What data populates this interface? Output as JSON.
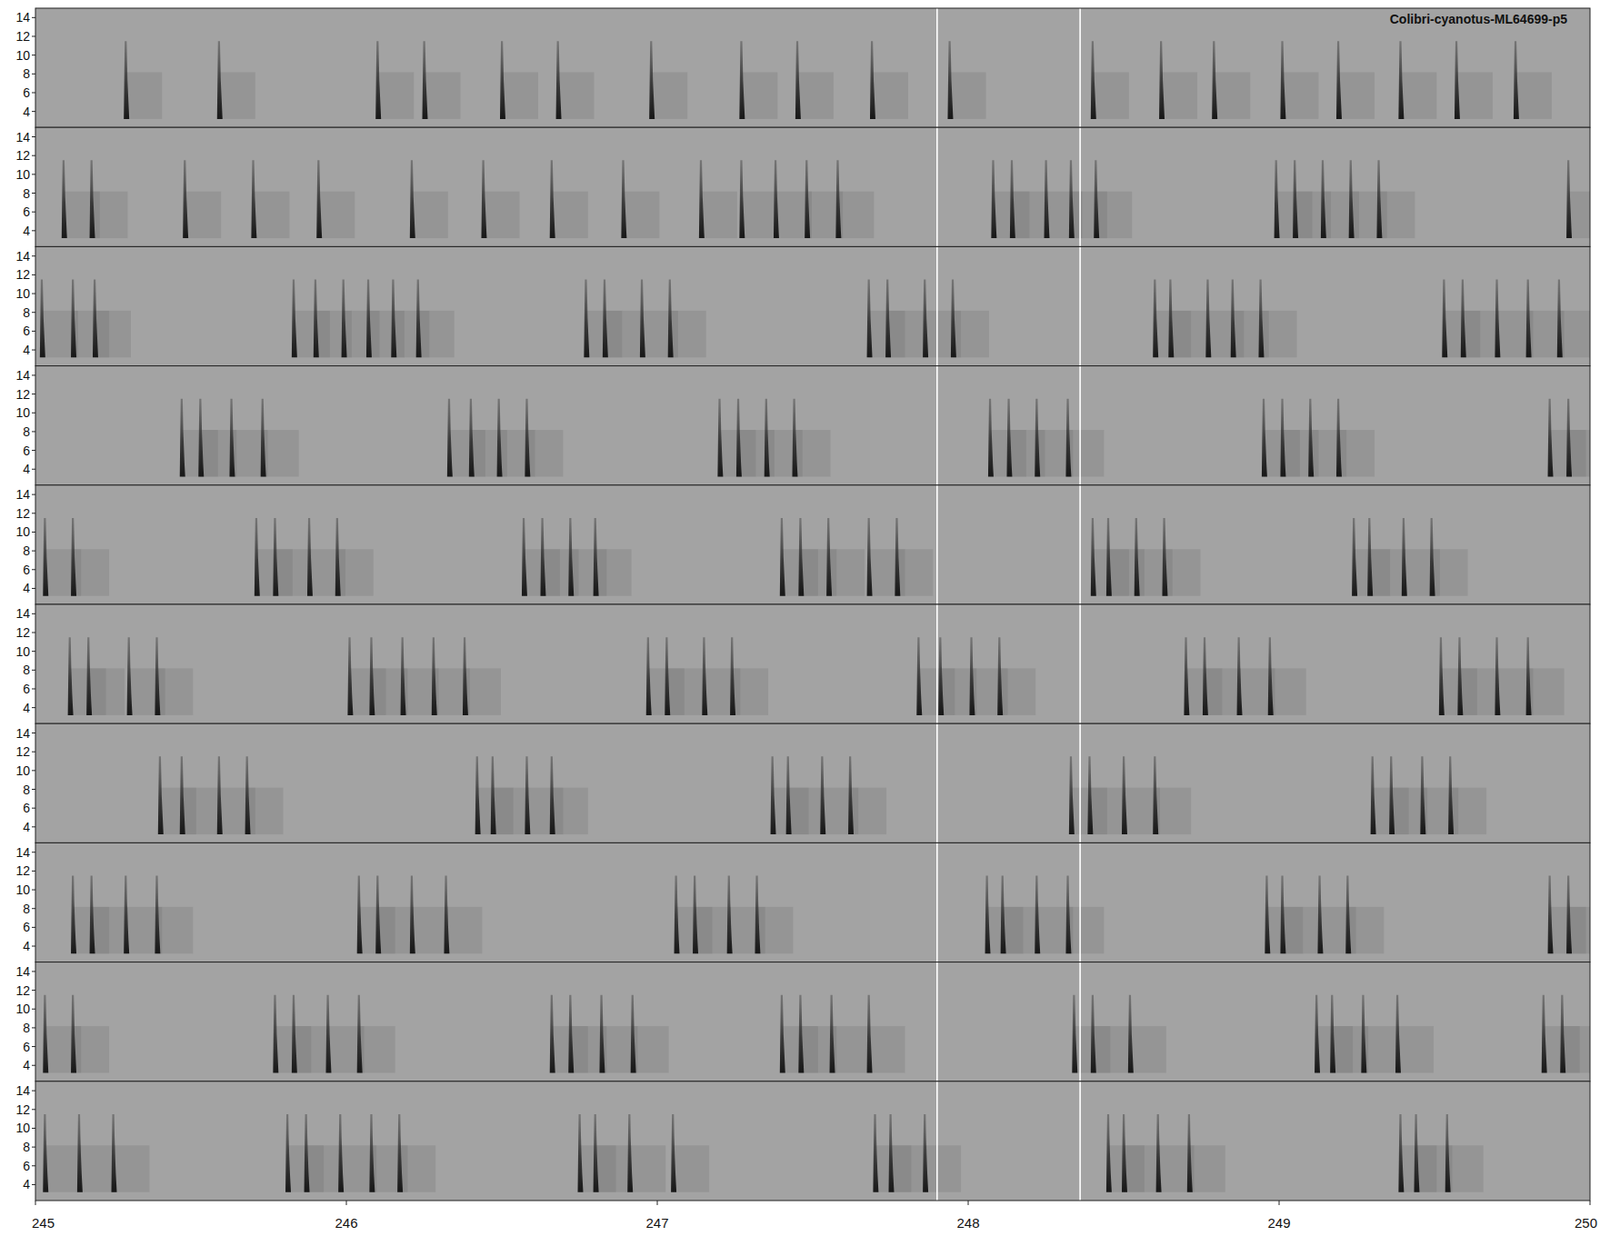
{
  "chart_data": {
    "type": "spectrogram",
    "title": "Colibri-cyanotus-ML64699-p5",
    "xlim": [
      245,
      250
    ],
    "xticks": [
      245,
      246,
      247,
      248,
      249,
      250
    ],
    "ylim": [
      2.3,
      15
    ],
    "yticks": [
      4,
      6,
      8,
      10,
      12,
      14
    ],
    "note_band": [
      3.2,
      11.5
    ],
    "markers": [
      247.9,
      248.36
    ],
    "panels": [
      {
        "notes": [
          245.29,
          245.59,
          246.1,
          246.25,
          246.5,
          246.68,
          246.98,
          247.27,
          247.45,
          247.69,
          247.94,
          248.4,
          248.62,
          248.79,
          249.01,
          249.19,
          249.39,
          249.57,
          249.76
        ]
      },
      {
        "notes": [
          245.09,
          245.18,
          245.48,
          245.7,
          245.91,
          246.21,
          246.44,
          246.66,
          246.89,
          247.14,
          247.27,
          247.38,
          247.48,
          247.58,
          248.08,
          248.14,
          248.25,
          248.33,
          248.41,
          248.99,
          249.05,
          249.14,
          249.23,
          249.32,
          249.93
        ]
      },
      {
        "notes": [
          245.02,
          245.12,
          245.19,
          245.83,
          245.9,
          245.99,
          246.07,
          246.15,
          246.23,
          246.77,
          246.83,
          246.95,
          247.04,
          247.68,
          247.74,
          247.86,
          247.95,
          248.6,
          248.65,
          248.77,
          248.85,
          248.94,
          249.53,
          249.59,
          249.7,
          249.8,
          249.9
        ]
      },
      {
        "notes": [
          245.47,
          245.53,
          245.63,
          245.73,
          246.33,
          246.4,
          246.49,
          246.58,
          247.2,
          247.26,
          247.35,
          247.44,
          248.07,
          248.13,
          248.22,
          248.32,
          248.95,
          249.01,
          249.1,
          249.19,
          249.87,
          249.93
        ]
      },
      {
        "notes": [
          245.03,
          245.12,
          245.71,
          245.77,
          245.88,
          245.97,
          246.57,
          246.63,
          246.72,
          246.8,
          247.4,
          247.46,
          247.55,
          247.68,
          247.77,
          248.4,
          248.45,
          248.54,
          248.63,
          249.24,
          249.29,
          249.4,
          249.49
        ]
      },
      {
        "notes": [
          245.11,
          245.17,
          245.3,
          245.39,
          246.01,
          246.08,
          246.18,
          246.28,
          246.38,
          246.97,
          247.03,
          247.15,
          247.24,
          247.84,
          247.91,
          248.01,
          248.1,
          248.7,
          248.76,
          248.87,
          248.97,
          249.52,
          249.58,
          249.7,
          249.8
        ]
      },
      {
        "notes": [
          245.4,
          245.47,
          245.59,
          245.68,
          246.42,
          246.47,
          246.58,
          246.66,
          247.37,
          247.42,
          247.53,
          247.62,
          248.33,
          248.39,
          248.5,
          248.6,
          249.3,
          249.36,
          249.46,
          249.55
        ]
      },
      {
        "notes": [
          245.12,
          245.18,
          245.29,
          245.39,
          246.04,
          246.1,
          246.21,
          246.32,
          247.06,
          247.12,
          247.23,
          247.32,
          248.06,
          248.11,
          248.22,
          248.32,
          248.96,
          249.01,
          249.13,
          249.22,
          249.87,
          249.93
        ]
      },
      {
        "notes": [
          245.03,
          245.12,
          245.77,
          245.83,
          245.94,
          246.04,
          246.66,
          246.72,
          246.82,
          246.92,
          247.4,
          247.46,
          247.56,
          247.68,
          248.34,
          248.4,
          248.52,
          249.12,
          249.17,
          249.27,
          249.38,
          249.85,
          249.91
        ]
      },
      {
        "notes": [
          245.03,
          245.14,
          245.25,
          245.81,
          245.87,
          245.98,
          246.08,
          246.17,
          246.75,
          246.8,
          246.91,
          247.05,
          247.7,
          247.75,
          247.86,
          248.45,
          248.5,
          248.61,
          248.71,
          249.39,
          249.44,
          249.54
        ]
      }
    ]
  }
}
